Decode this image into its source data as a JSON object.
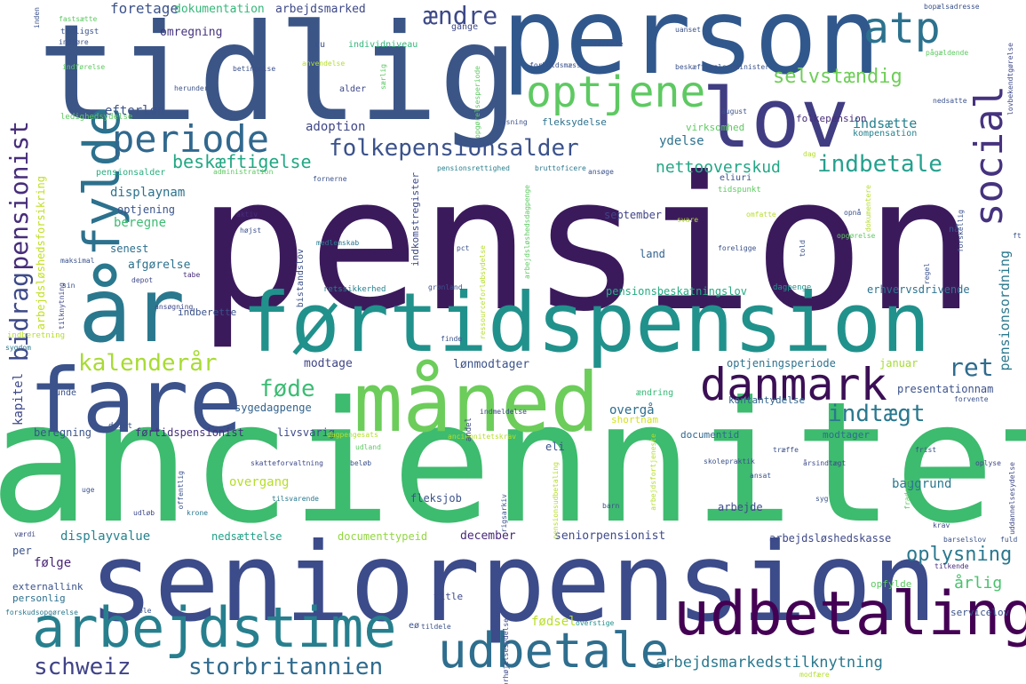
{
  "words": [
    {
      "text": "pension",
      "color": "#3b1a5c"
    },
    {
      "text": "anciennitet",
      "color": "#3dbb6e"
    },
    {
      "text": "seniorpension",
      "color": "#3c4b8a"
    },
    {
      "text": "person",
      "color": "#31588d"
    },
    {
      "text": "tidlig",
      "color": "#3b5586"
    },
    {
      "text": "førtidspension",
      "color": "#21918c"
    },
    {
      "text": "år",
      "color": "#2a788e"
    },
    {
      "text": "fare",
      "color": "#3b528b"
    },
    {
      "text": "måned",
      "color": "#6ccd5a"
    },
    {
      "text": "lov",
      "color": "#413d83"
    },
    {
      "text": "udbetaling",
      "color": "#440154"
    },
    {
      "text": "arbejdstime",
      "color": "#277f8e"
    },
    {
      "text": "danmark",
      "color": "#3b0f55"
    },
    {
      "text": "udbetale",
      "color": "#2e6e8e"
    },
    {
      "text": "fylde",
      "color": "#2c718e"
    },
    {
      "text": "optjene",
      "color": "#5ec962"
    },
    {
      "text": "periode",
      "color": "#31688e"
    },
    {
      "text": "social",
      "color": "#46337e"
    },
    {
      "text": "atp",
      "color": "#2c728e"
    },
    {
      "text": "folkepensionsalder",
      "color": "#3b528b"
    },
    {
      "text": "indbetale",
      "color": "#25a18e"
    },
    {
      "text": "indtægt",
      "color": "#2a788e"
    },
    {
      "text": "ret",
      "color": "#2e6b8e"
    },
    {
      "text": "føde",
      "color": "#3dbc74"
    },
    {
      "text": "kalenderår",
      "color": "#a8db34"
    },
    {
      "text": "schweiz",
      "color": "#404387"
    },
    {
      "text": "storbritannien",
      "color": "#2f6b8e"
    },
    {
      "text": "bidrag",
      "color": "#3e4a89"
    },
    {
      "text": "pensionist",
      "color": "#472d7b"
    },
    {
      "text": "selvstændig",
      "color": "#6ece58"
    },
    {
      "text": "ændre",
      "color": "#3e4989"
    },
    {
      "text": "beskæftigelse",
      "color": "#22a884"
    },
    {
      "text": "nettooverskud",
      "color": "#22a785"
    },
    {
      "text": "oplysning",
      "color": "#2a788e"
    },
    {
      "text": "årlig",
      "color": "#4ac16d"
    },
    {
      "text": "arbejdsmarkedstilknytning",
      "color": "#2a788e"
    },
    {
      "text": "foretage",
      "color": "#3b528b"
    },
    {
      "text": "dokumentation",
      "color": "#35b779"
    },
    {
      "text": "arbejdsmarked",
      "color": "#3e4989"
    },
    {
      "text": "omregning",
      "color": "#46337e"
    },
    {
      "text": "efterløn",
      "color": "#3b528b"
    },
    {
      "text": "adoption",
      "color": "#3f4788"
    },
    {
      "text": "ydelse",
      "color": "#2c718e"
    },
    {
      "text": "indsætte",
      "color": "#27808e"
    },
    {
      "text": "displaynam",
      "color": "#2c728e"
    },
    {
      "text": "optjening",
      "color": "#3a548c"
    },
    {
      "text": "beregne",
      "color": "#3fbc73"
    },
    {
      "text": "september",
      "color": "#404588"
    },
    {
      "text": "senest",
      "color": "#2e6f8e"
    },
    {
      "text": "afgørelse",
      "color": "#2c728e"
    },
    {
      "text": "land",
      "color": "#33628d"
    },
    {
      "text": "pensionsbeskatningslov",
      "color": "#25ab82"
    },
    {
      "text": "erhvervsdrivende",
      "color": "#2c728e"
    },
    {
      "text": "pensionsordning",
      "color": "#2a788e"
    },
    {
      "text": "modtage",
      "color": "#404688"
    },
    {
      "text": "lønmodtager",
      "color": "#3b528b"
    },
    {
      "text": "optjeningsperiode",
      "color": "#2c728e"
    },
    {
      "text": "januar",
      "color": "#a5db36"
    },
    {
      "text": "sygedagpenge",
      "color": "#33638d"
    },
    {
      "text": "overgå",
      "color": "#2e6e8e"
    },
    {
      "text": "presentationnam",
      "color": "#3b528b"
    },
    {
      "text": "kontantydelse",
      "color": "#33638d"
    },
    {
      "text": "førtidspensionist",
      "color": "#46307e"
    },
    {
      "text": "livsvarig",
      "color": "#3e4a89"
    },
    {
      "text": "documentid",
      "color": "#31688e"
    },
    {
      "text": "modtager",
      "color": "#2f6c8e"
    },
    {
      "text": "beregning",
      "color": "#3a548c"
    },
    {
      "text": "overgang",
      "color": "#b5de2b"
    },
    {
      "text": "baggrund",
      "color": "#2a788e"
    },
    {
      "text": "arbejde",
      "color": "#3e4989"
    },
    {
      "text": "fleksjob",
      "color": "#3b528b"
    },
    {
      "text": "displayvalue",
      "color": "#26828e"
    },
    {
      "text": "nedsættelse",
      "color": "#1fa187"
    },
    {
      "text": "documenttypeid",
      "color": "#93d741"
    },
    {
      "text": "december",
      "color": "#482878"
    },
    {
      "text": "seniorpensionist",
      "color": "#3e4a89"
    },
    {
      "text": "arbejdsløshedskasse",
      "color": "#3e4989"
    },
    {
      "text": "følge",
      "color": "#482475"
    },
    {
      "text": "per",
      "color": "#3b528b"
    },
    {
      "text": "externallink",
      "color": "#3b528b"
    },
    {
      "text": "personlig",
      "color": "#2d708e"
    },
    {
      "text": "fødsel",
      "color": "#b8de29"
    },
    {
      "text": "title",
      "color": "#3e4989"
    },
    {
      "text": "servicelov",
      "color": "#3b528b"
    },
    {
      "text": "shortnam",
      "color": "#d2e21b"
    },
    {
      "text": "ændring",
      "color": "#38b977"
    },
    {
      "text": "eli",
      "color": "#3b528b"
    },
    {
      "text": "gange",
      "color": "#3e4989"
    },
    {
      "text": "eu",
      "color": "#3b528b"
    },
    {
      "text": "individniveau",
      "color": "#32b67a"
    },
    {
      "text": "alder",
      "color": "#3e4989"
    },
    {
      "text": "fleksydelse",
      "color": "#2c728e"
    },
    {
      "text": "virksomhed",
      "color": "#5ec962"
    },
    {
      "text": "folkepension",
      "color": "#472d7b"
    },
    {
      "text": "kompensation",
      "color": "#26828e"
    },
    {
      "text": "ledighedsydelse",
      "color": "#5ec962"
    },
    {
      "text": "pensionsalder",
      "color": "#29af7f"
    },
    {
      "text": "administration",
      "color": "#5ec962"
    },
    {
      "text": "pensionsrettighed",
      "color": "#27808e"
    },
    {
      "text": "bruttoficere",
      "color": "#2a788e"
    },
    {
      "text": "eliuri",
      "color": "#3b528b"
    },
    {
      "text": "tidspunkt",
      "color": "#5ec962"
    },
    {
      "text": "aktiv",
      "color": "#472d7b"
    },
    {
      "text": "højst",
      "color": "#3b528b"
    },
    {
      "text": "medlemskab",
      "color": "#2a788e"
    },
    {
      "text": "bistandslov",
      "color": "#3b528b"
    },
    {
      "text": "indkomstregister",
      "color": "#3e4989"
    },
    {
      "text": "retssikkerhed",
      "color": "#26828e"
    },
    {
      "text": "grønland",
      "color": "#3b528b"
    },
    {
      "text": "dagpenge",
      "color": "#21918c"
    },
    {
      "text": "tilknytning",
      "color": "#3e4989"
    },
    {
      "text": "ansøgning",
      "color": "#3e4989"
    },
    {
      "text": "indberette",
      "color": "#3b528b"
    },
    {
      "text": "indberetning",
      "color": "#b5de2b"
    },
    {
      "text": "sygdom",
      "color": "#2a788e"
    },
    {
      "text": "maksimal",
      "color": "#3b528b"
    },
    {
      "text": "depot",
      "color": "#3e4989"
    },
    {
      "text": "tabe",
      "color": "#472d7b"
    },
    {
      "text": "sin",
      "color": "#3b528b"
    },
    {
      "text": "arbejdsløshedsforsikring",
      "color": "#c2df23"
    },
    {
      "text": "kapitel",
      "color": "#3e4989"
    },
    {
      "text": "unde",
      "color": "#3b528b"
    },
    {
      "text": "drift",
      "color": "#3b528b"
    },
    {
      "text": "dagpengesats",
      "color": "#b5de2b"
    },
    {
      "text": "anciennitetskrav",
      "color": "#b5de2b"
    },
    {
      "text": "udland",
      "color": "#5ec962"
    },
    {
      "text": "skatteforvaltning",
      "color": "#3e4989"
    },
    {
      "text": "beløb",
      "color": "#3b528b"
    },
    {
      "text": "tilsvarende",
      "color": "#2a788e"
    },
    {
      "text": "udløb",
      "color": "#3e4989"
    },
    {
      "text": "krone",
      "color": "#2a788e"
    },
    {
      "text": "offentlig",
      "color": "#3b528b"
    },
    {
      "text": "uge",
      "color": "#3b528b"
    },
    {
      "text": "værdi",
      "color": "#3e4989"
    },
    {
      "text": "skolepraktik",
      "color": "#3b528b"
    },
    {
      "text": "årsindtægt",
      "color": "#3e4989"
    },
    {
      "text": "ansat",
      "color": "#3b528b"
    },
    {
      "text": "syg",
      "color": "#3b528b"
    },
    {
      "text": "barn",
      "color": "#3b528b"
    },
    {
      "text": "krav",
      "color": "#3e4989"
    },
    {
      "text": "barselslov",
      "color": "#3b528b"
    },
    {
      "text": "fuld",
      "color": "#3b528b"
    },
    {
      "text": "tilkende",
      "color": "#472d7b"
    },
    {
      "text": "opfylde",
      "color": "#5ec962"
    },
    {
      "text": "ble",
      "color": "#3b528b"
    },
    {
      "text": "tildele",
      "color": "#3b528b"
    },
    {
      "text": "overstige",
      "color": "#21918c"
    },
    {
      "text": "forskudsopgørelse",
      "color": "#2a788e"
    },
    {
      "text": "modfære",
      "color": "#b5de2b"
    },
    {
      "text": "finde",
      "color": "#3b528b"
    },
    {
      "text": "indmeldelse",
      "color": "#3e4989"
    },
    {
      "text": "forvente",
      "color": "#3b528b"
    },
    {
      "text": "frist",
      "color": "#3b528b"
    },
    {
      "text": "træffe",
      "color": "#3b528b"
    },
    {
      "text": "oplyse",
      "color": "#3e4989"
    },
    {
      "text": "pct",
      "color": "#3b528b"
    },
    {
      "text": "told",
      "color": "#3b528b"
    },
    {
      "text": "opnå",
      "color": "#3b528b"
    },
    {
      "text": "omfatte",
      "color": "#b5de2b"
    },
    {
      "text": "svare",
      "color": "#b5de2b"
    },
    {
      "text": "opgørelse",
      "color": "#5ec962"
    },
    {
      "text": "foreligge",
      "color": "#3b528b"
    },
    {
      "text": "regel",
      "color": "#3b528b"
    },
    {
      "text": "forskellig",
      "color": "#3b528b"
    },
    {
      "text": "ft",
      "color": "#3b528b"
    },
    {
      "text": "dag",
      "color": "#b5de2b"
    },
    {
      "text": "august",
      "color": "#3b528b"
    },
    {
      "text": "nedsatte",
      "color": "#3b528b"
    },
    {
      "text": "lovbekendtgørelse",
      "color": "#3e4989"
    },
    {
      "text": "beskæftigelsesminister",
      "color": "#3b528b"
    },
    {
      "text": "forholdsmæssig",
      "color": "#3b528b"
    },
    {
      "text": "affatte",
      "color": "#3b528b"
    },
    {
      "text": "uanset",
      "color": "#3b528b"
    },
    {
      "text": "bopælsadresse",
      "color": "#3b528b"
    },
    {
      "text": "pågældende",
      "color": "#5ec962"
    },
    {
      "text": "fastsætte",
      "color": "#5ec962"
    },
    {
      "text": "tidligst",
      "color": "#3b528b"
    },
    {
      "text": "indføre",
      "color": "#3b528b"
    },
    {
      "text": "indførelse",
      "color": "#5ec962"
    },
    {
      "text": "betingelse",
      "color": "#3b528b"
    },
    {
      "text": "anvendelse",
      "color": "#b5de2b"
    },
    {
      "text": "herunder",
      "color": "#3b528b"
    },
    {
      "text": "særlig",
      "color": "#5ec962"
    },
    {
      "text": "opgørelsesperiode",
      "color": "#5ec962"
    },
    {
      "text": "pasning",
      "color": "#3b528b"
    },
    {
      "text": "ansøge",
      "color": "#3b528b"
    },
    {
      "text": "fornerne",
      "color": "#3b528b"
    },
    {
      "text": "ressourceforløbsydelse",
      "color": "#b5de2b"
    },
    {
      "text": "arbejdsløshedsdagpenge",
      "color": "#5ec962"
    },
    {
      "text": "andel",
      "color": "#3e4989"
    },
    {
      "text": "pensionsudbetaling",
      "color": "#b5de2b"
    },
    {
      "text": "rigsarkiv",
      "color": "#3b528b"
    },
    {
      "text": "arbejdsfortjeneste",
      "color": "#b5de2b"
    },
    {
      "text": "forhøjelsesydelse",
      "color": "#3e4989"
    },
    {
      "text": "eø",
      "color": "#3b528b"
    },
    {
      "text": "nå",
      "color": "#3b528b"
    },
    {
      "text": "fradrag",
      "color": "#5ec962"
    },
    {
      "text": "uddannelsesydelse",
      "color": "#3e4989"
    },
    {
      "text": "dokumentere",
      "color": "#b5de2b"
    },
    {
      "text": "inden",
      "color": "#3b528b"
    }
  ]
}
